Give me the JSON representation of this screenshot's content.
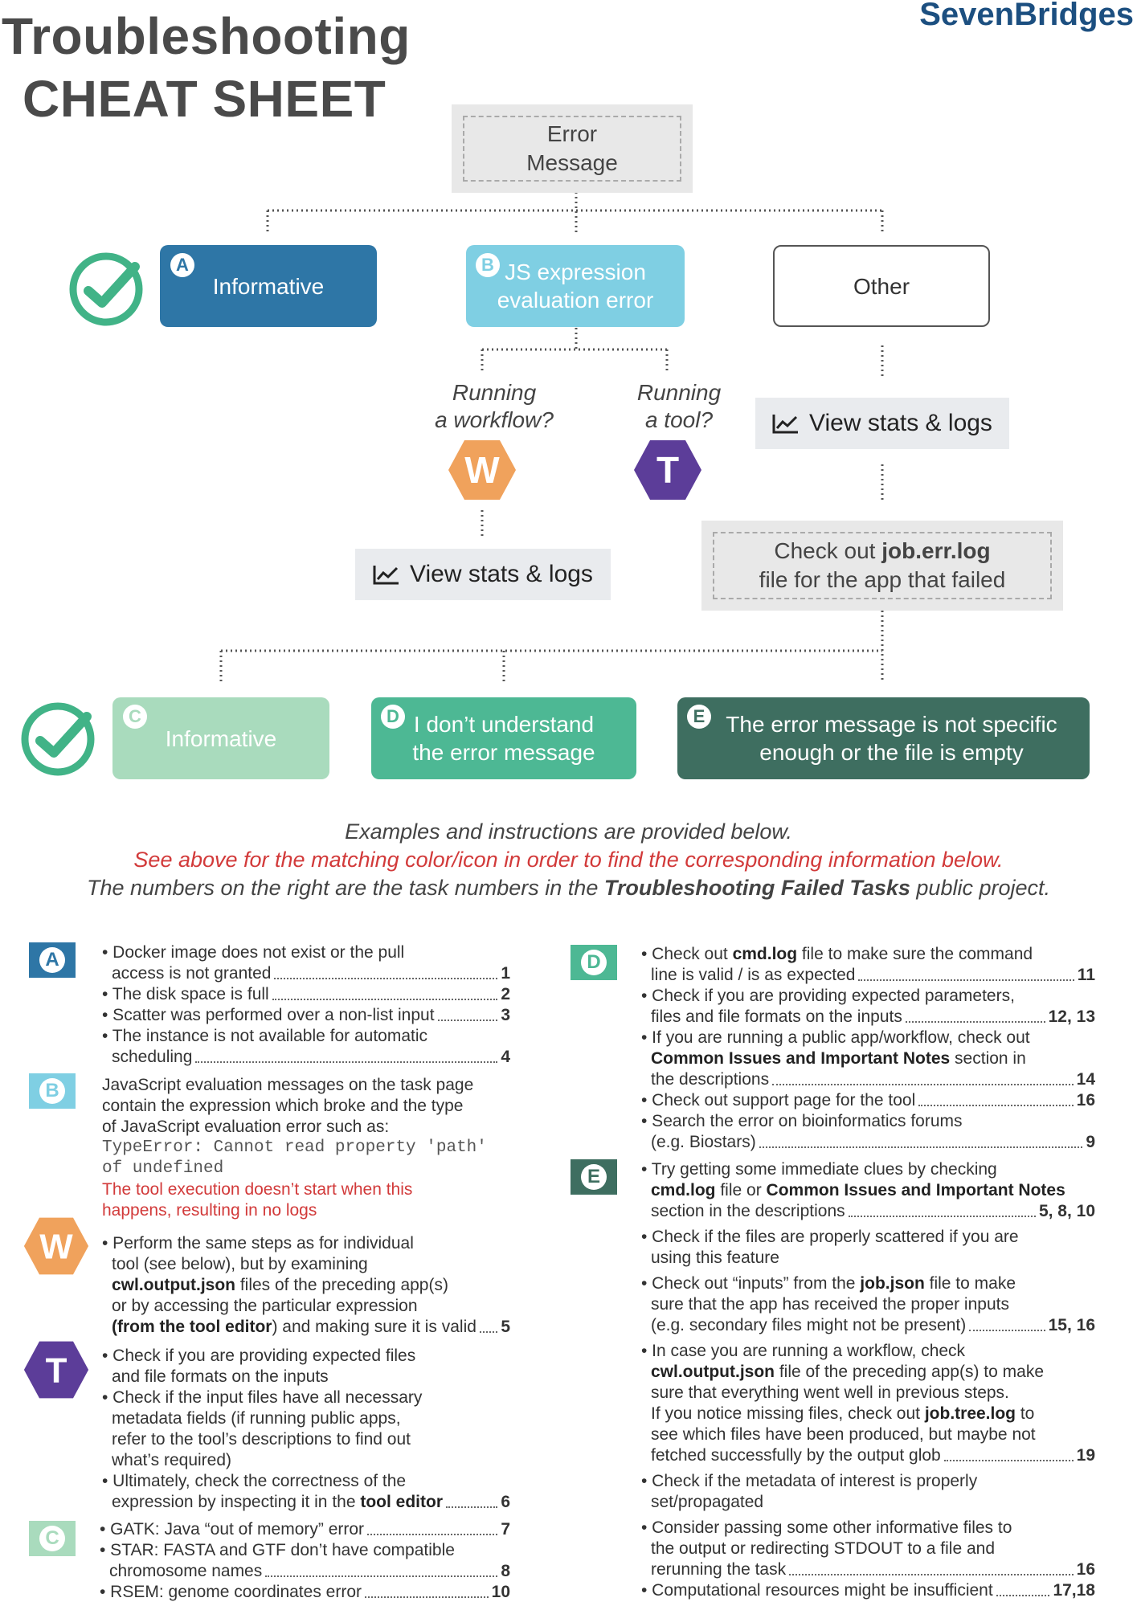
{
  "header": {
    "title_line1": "Troubleshooting",
    "title_line2": "CHEAT SHEET",
    "brand": "SevenBridges"
  },
  "flow": {
    "root": "Error\nMessage",
    "a_label": "Informative",
    "b_label": "JS expression\nevaluation error",
    "other_label": "Other",
    "workflow_q": "Running\na workflow?",
    "tool_q": "Running\na tool?",
    "view_stats": "View stats & logs",
    "check_err_1": "Check out ",
    "check_err_bold": "job.err.log",
    "check_err_2": "file for the app that failed",
    "c_label": "Informative",
    "d_label": "I don’t understand\nthe error message",
    "e_label": "The error message is not specific\nenough or the file is empty",
    "badges": {
      "a": "A",
      "b": "B",
      "c": "C",
      "d": "D",
      "e": "E",
      "w": "W",
      "t": "T"
    }
  },
  "notes": {
    "line1": "Examples and instructions are provided below.",
    "line2": "See above for the matching color/icon in order to find the corresponding information below.",
    "line3_a": "The numbers on the right are the task numbers in the ",
    "line3_b": "Troubleshooting Failed Tasks",
    "line3_c": " public project."
  },
  "sections": {
    "a": {
      "i1a": "• Docker image does not exist or the pull",
      "i1b": "access is not granted",
      "n1": "1",
      "i2": "• The disk space is full",
      "n2": "2",
      "i3": "• Scatter was performed over a non-list input",
      "n3": "3",
      "i4a": "• The instance is not available for automatic",
      "i4b": "scheduling",
      "n4": "4"
    },
    "b": {
      "l1": "JavaScript evaluation messages on the task page",
      "l2": "contain the expression which broke and the type",
      "l3": "of JavaScript evaluation error such as:",
      "code1": "TypeError: Cannot read property 'path'",
      "code2": "of undefined",
      "red1": "The tool execution doesn’t start when this",
      "red2": "happens, resulting in no logs"
    },
    "w": {
      "l1": "• Perform the same steps as for individual",
      "l2": "tool (see below), but by examining",
      "l3_bold": "cwl.output.json",
      "l3": " files of the preceding app(s)",
      "l4": "or by accessing the particular expression",
      "l5_bold": "(from the tool editor",
      "l5": ") and making sure it is valid",
      "n": "5"
    },
    "t": {
      "l1": "• Check if you are providing expected files",
      "l2": "and file formats on the inputs",
      "l3": "• Check if the input files have all necessary",
      "l4": "metadata fields (if running public apps,",
      "l5": "refer to the tool’s descriptions to find out",
      "l6": "what’s required)",
      "l7": "• Ultimately, check the correctness of the",
      "l8": "expression by inspecting it in the ",
      "l8_bold": "tool editor",
      "n": "6"
    },
    "c": {
      "i1": "• GATK: Java “out of memory” error",
      "n1": "7",
      "i2a": "• STAR: FASTA and GTF don’t have compatible",
      "i2b": "chromosome names",
      "n2": "8",
      "i3": "• RSEM: genome coordinates error",
      "n3": "10"
    },
    "d": {
      "i1a_pre": "• Check out ",
      "i1a_bold": "cmd.log",
      "i1a_post": " file to make sure the command",
      "i1b": "line is valid / is as expected",
      "n1": "11",
      "i2a": "• Check if you are providing expected parameters,",
      "i2b": "files and file formats on the inputs",
      "n2": "12, 13",
      "i3a": "• If you are running a public app/workflow, check out",
      "i3b_bold": "Common Issues and Important Notes",
      "i3b": " section in",
      "i3c": "the descriptions",
      "n3": "14",
      "i4": "• Check out support page for the tool",
      "n4": "16",
      "i5a": "• Search the error on bioinformatics forums",
      "i5b": "(e.g. Biostars)",
      "n5": "9"
    },
    "e": {
      "i1a": "• Try getting some immediate clues by checking",
      "i1b_bold1": "cmd.log",
      "i1b_mid": " file or ",
      "i1b_bold2": "Common Issues and Important Notes",
      "i1c": "section in the descriptions",
      "n1": "5, 8, 10",
      "i2a": "• Check if the files are properly scattered if you are",
      "i2b": "using this feature",
      "i3a_pre": "• Check out “inputs” from the ",
      "i3a_bold": "job.json",
      "i3a_post": " file to make",
      "i3b": "sure that the app has received the proper inputs",
      "i3c": "(e.g. secondary files might not be present)",
      "n3": "15, 16",
      "i4a": "• In case you are running a workflow, check",
      "i4b_bold": "cwl.output.json",
      "i4b": " file of the preceding app(s) to make",
      "i4c": "sure that everything went well in previous steps.",
      "i4d_pre": "If you notice missing files, check out ",
      "i4d_bold": "job.tree.log",
      "i4d_post": " to",
      "i4e": "see which files have been produced, but maybe not",
      "i4f": "fetched successfully by the output glob",
      "n4": "19",
      "i5a": "• Check if the metadata of interest is properly",
      "i5b": "set/propagated",
      "i6a": "• Consider passing some other informative files to",
      "i6b": "the output or redirecting STDOUT to a file and",
      "i6c": "rerunning the task",
      "n6": "16",
      "i7": "• Computational resources might be insufficient",
      "n7": "17,18"
    }
  },
  "colors": {
    "a": "#2e76a6",
    "b": "#7fcfe3",
    "c": "#a9dbbd",
    "d": "#4db894",
    "e": "#3e6e60",
    "w": "#f0a25c",
    "t": "#5c3d99",
    "check": "#41b387"
  }
}
